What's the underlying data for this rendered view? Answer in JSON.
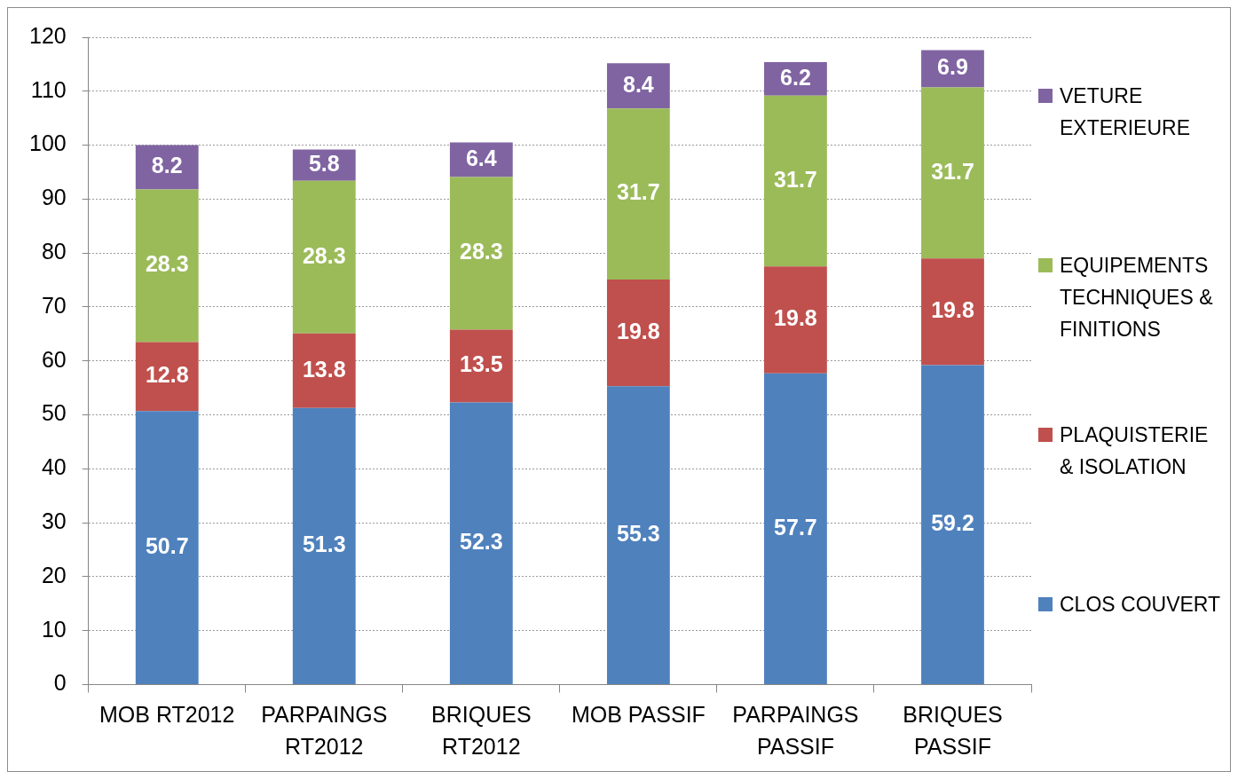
{
  "chart_data": {
    "type": "bar",
    "stacked": true,
    "categories": [
      "MOB RT2012",
      "PARPAINGS RT2012",
      "BRIQUES RT2012",
      "MOB PASSIF",
      "PARPAINGS PASSIF",
      "BRIQUES PASSIF"
    ],
    "series": [
      {
        "name": "CLOS COUVERT",
        "color": "#4f81bd",
        "values": [
          50.7,
          51.3,
          52.3,
          55.3,
          57.7,
          59.2
        ]
      },
      {
        "name": "PLAQUISTERIE & ISOLATION",
        "color": "#c0504d",
        "values": [
          12.8,
          13.8,
          13.5,
          19.8,
          19.8,
          19.8
        ]
      },
      {
        "name": "EQUIPEMENTS TECHNIQUES & FINITIONS",
        "color": "#9bbb59",
        "values": [
          28.3,
          28.3,
          28.3,
          31.7,
          31.7,
          31.7
        ]
      },
      {
        "name": "VETURE EXTERIEURE",
        "color": "#8064a2",
        "values": [
          8.2,
          5.8,
          6.4,
          8.4,
          6.2,
          6.9
        ]
      }
    ],
    "ylim": [
      0,
      120
    ],
    "yticks": [
      0,
      10,
      20,
      30,
      40,
      50,
      60,
      70,
      80,
      90,
      100,
      110,
      120
    ],
    "grid": "y",
    "legend": "right",
    "data_labels": true
  }
}
